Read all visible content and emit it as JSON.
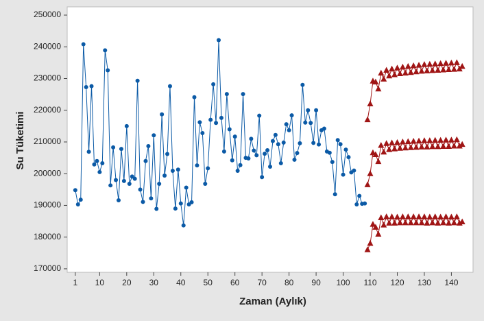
{
  "chart_data": {
    "type": "line",
    "x_label": "Zaman (Aylık)",
    "y_label": "Su Tüketimi",
    "xlim": [
      -2,
      148
    ],
    "ylim": [
      168900,
      252600
    ],
    "xticks": [
      1,
      10,
      20,
      30,
      40,
      50,
      60,
      70,
      80,
      90,
      100,
      110,
      120,
      130,
      140
    ],
    "yticks": [
      170000,
      180000,
      190000,
      200000,
      210000,
      220000,
      230000,
      240000,
      250000
    ],
    "series": [
      {
        "color": "#0b5aa6",
        "marker": "circle",
        "x": [
          1,
          2,
          3,
          4,
          5,
          6,
          7,
          8,
          9,
          10,
          11,
          12,
          13,
          14,
          15,
          16,
          17,
          18,
          19,
          20,
          21,
          22,
          23,
          24,
          25,
          26,
          27,
          28,
          29,
          30,
          31,
          32,
          33,
          34,
          35,
          36,
          37,
          38,
          39,
          40,
          41,
          42,
          43,
          44,
          45,
          46,
          47,
          48,
          49,
          50,
          51,
          52,
          53,
          54,
          55,
          56,
          57,
          58,
          59,
          60,
          61,
          62,
          63,
          64,
          65,
          66,
          67,
          68,
          69,
          70,
          71,
          72,
          73,
          74,
          75,
          76,
          77,
          78,
          79,
          80,
          81,
          82,
          83,
          84,
          85,
          86,
          87,
          88,
          89,
          90,
          91,
          92,
          93,
          94,
          95,
          96,
          97,
          98,
          99,
          100,
          101,
          102,
          103,
          104,
          105,
          106,
          107,
          108
        ],
        "values": [
          194800,
          190300,
          191800,
          240800,
          227300,
          206900,
          227600,
          202900,
          204000,
          200500,
          203300,
          238900,
          232600,
          196300,
          208300,
          198000,
          191600,
          207800,
          197700,
          215000,
          196800,
          199100,
          198400,
          229300,
          195000,
          191100,
          204000,
          208700,
          192200,
          212100,
          188900,
          196800,
          218700,
          199400,
          206200,
          227600,
          200900,
          189000,
          201300,
          190600,
          183700,
          195600,
          190300,
          191000,
          224100,
          202600,
          216200,
          212800,
          196800,
          201700,
          217000,
          228200,
          216000,
          242100,
          217600,
          207000,
          225100,
          214000,
          204200,
          211700,
          200900,
          202700,
          225100,
          205000,
          204800,
          211000,
          207300,
          205800,
          218300,
          198900,
          206300,
          207400,
          202200,
          210300,
          212200,
          209300,
          203300,
          209800,
          215600,
          213700,
          218400,
          204400,
          206500,
          209600,
          228000,
          216100,
          220000,
          216000,
          209700,
          220000,
          209200,
          213700,
          214200,
          207000,
          206600,
          203700,
          193500,
          210600,
          209300,
          199700,
          207600,
          205200,
          200400,
          201000,
          190300,
          193000,
          190500,
          190600
        ]
      },
      {
        "color": "#a01515",
        "marker": "triangle",
        "x": [
          109,
          110,
          111,
          112,
          113,
          114,
          115,
          116,
          117,
          118,
          119,
          120,
          121,
          122,
          123,
          124,
          125,
          126,
          127,
          128,
          129,
          130,
          131,
          132,
          133,
          134,
          135,
          136,
          137,
          138,
          139,
          140,
          141,
          142,
          143,
          144
        ],
        "values": [
          217000,
          222000,
          229200,
          228900,
          226700,
          231700,
          229800,
          232600,
          230800,
          233000,
          231200,
          233300,
          231500,
          233600,
          231700,
          233800,
          231900,
          234000,
          232100,
          234200,
          232300,
          234400,
          232400,
          234500,
          232500,
          234600,
          232600,
          234700,
          232700,
          234800,
          232800,
          234900,
          232900,
          235000,
          233000,
          233800
        ]
      },
      {
        "color": "#a01515",
        "marker": "triangle",
        "x": [
          109,
          110,
          111,
          112,
          113,
          114,
          115,
          116,
          117,
          118,
          119,
          120,
          121,
          122,
          123,
          124,
          125,
          126,
          127,
          128,
          129,
          130,
          131,
          132,
          133,
          134,
          135,
          136,
          137,
          138,
          139,
          140,
          141,
          142,
          143,
          144
        ],
        "values": [
          196500,
          200000,
          206600,
          206000,
          203800,
          208900,
          206800,
          209500,
          207600,
          209700,
          207800,
          209800,
          208000,
          210000,
          208100,
          210100,
          208200,
          210200,
          208300,
          210300,
          208400,
          210400,
          208400,
          210400,
          208500,
          210500,
          208500,
          210500,
          208600,
          210600,
          208600,
          210600,
          208700,
          210700,
          208700,
          209200
        ]
      },
      {
        "color": "#a01515",
        "marker": "triangle",
        "x": [
          109,
          110,
          111,
          112,
          113,
          114,
          115,
          116,
          117,
          118,
          119,
          120,
          121,
          122,
          123,
          124,
          125,
          126,
          127,
          128,
          129,
          130,
          131,
          132,
          133,
          134,
          135,
          136,
          137,
          138,
          139,
          140,
          141,
          142,
          143,
          144
        ],
        "values": [
          176000,
          178000,
          184000,
          183100,
          180900,
          186100,
          183800,
          186400,
          184400,
          186400,
          184400,
          186300,
          184500,
          186400,
          184500,
          186400,
          184500,
          186400,
          184500,
          186400,
          184500,
          186400,
          184400,
          186300,
          184500,
          186400,
          184400,
          186300,
          184500,
          186400,
          184400,
          186300,
          184500,
          186400,
          184400,
          184800
        ]
      }
    ]
  }
}
